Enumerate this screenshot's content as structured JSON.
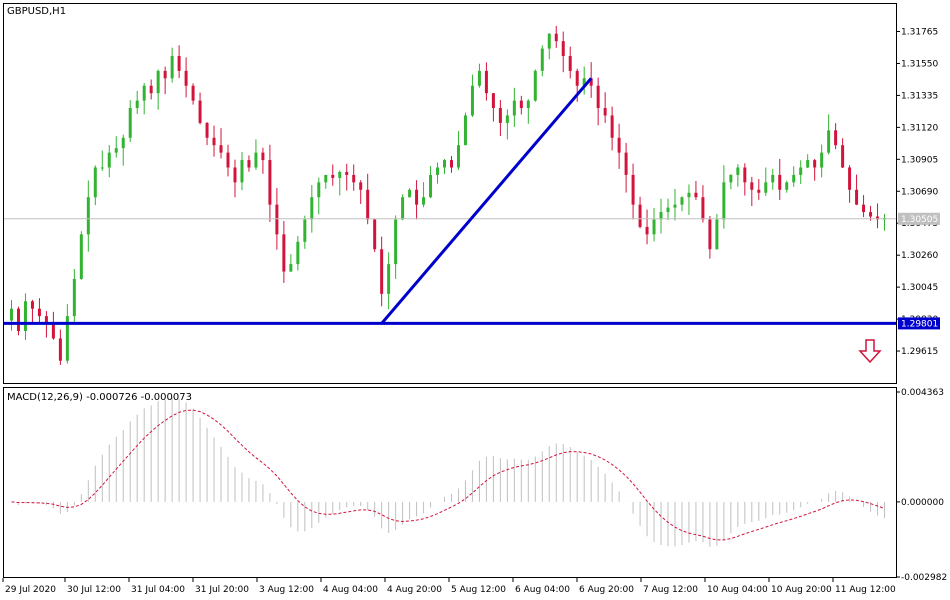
{
  "chart_data": [
    {
      "type": "candlestick",
      "title": "GBPUSD,H1",
      "ylim": [
        1.294,
        1.3195
      ],
      "y_ticks": [
        "1.31765",
        "1.31550",
        "1.31335",
        "1.31120",
        "1.30905",
        "1.30690",
        "1.30475",
        "1.30260",
        "1.30045",
        "1.29830",
        "1.29615"
      ],
      "x_labels": [
        "29 Jul 2020",
        "30 Jul 12:00",
        "31 Jul 04:00",
        "31 Jul 20:00",
        "3 Aug 12:00",
        "4 Aug 04:00",
        "4 Aug 20:00",
        "5 Aug 12:00",
        "6 Aug 04:00",
        "6 Aug 20:00",
        "7 Aug 12:00",
        "10 Aug 04:00",
        "10 Aug 20:00",
        "11 Aug 12:00"
      ],
      "current_price": {
        "label": "1.30505",
        "value": 1.30505,
        "color": "#c0c0c0"
      },
      "support_line": {
        "label": "1.29801",
        "value": 1.29801,
        "color": "#0000cd"
      },
      "trend_line": {
        "from": 1.29801,
        "to": 1.3145,
        "color": "#0000cd"
      },
      "signal": {
        "icon": "arrow-down-icon",
        "color": "#d2143c"
      },
      "bull_color": "#32b432",
      "bear_color": "#d2143c",
      "closes": [
        1.299,
        1.2975,
        1.2995,
        1.299,
        1.2985,
        1.298,
        1.297,
        1.2955,
        1.2985,
        1.301,
        1.304,
        1.3065,
        1.3085,
        1.3085,
        1.3095,
        1.3098,
        1.3105,
        1.3125,
        1.313,
        1.314,
        1.3135,
        1.315,
        1.3145,
        1.316,
        1.315,
        1.314,
        1.313,
        1.3115,
        1.3105,
        1.31,
        1.3095,
        1.3085,
        1.3075,
        1.309,
        1.3085,
        1.3095,
        1.309,
        1.306,
        1.304,
        1.3015,
        1.302,
        1.3035,
        1.305,
        1.3065,
        1.3075,
        1.308,
        1.3078,
        1.3082,
        1.308,
        1.3075,
        1.307,
        1.305,
        1.303,
        1.3,
        1.302,
        1.305,
        1.3065,
        1.307,
        1.306,
        1.3065,
        1.308,
        1.3085,
        1.309,
        1.3085,
        1.31,
        1.312,
        1.314,
        1.315,
        1.3135,
        1.3125,
        1.3115,
        1.312,
        1.313,
        1.3125,
        1.313,
        1.315,
        1.3165,
        1.3175,
        1.317,
        1.316,
        1.315,
        1.314,
        1.3145,
        1.314,
        1.3125,
        1.312,
        1.3105,
        1.3095,
        1.308,
        1.306,
        1.3045,
        1.304,
        1.305,
        1.3055,
        1.3058,
        1.306,
        1.3065,
        1.3068,
        1.3065,
        1.305,
        1.303,
        1.305,
        1.3075,
        1.308,
        1.3085,
        1.3075,
        1.307,
        1.3068,
        1.3075,
        1.308,
        1.307,
        1.3075,
        1.308,
        1.3085,
        1.309,
        1.3085,
        1.3095,
        1.311,
        1.31,
        1.3085,
        1.307,
        1.306,
        1.3055,
        1.3052,
        1.305,
        1.3051
      ]
    },
    {
      "type": "histogram+line",
      "title": "MACD(12,26,9) -0.000726 -0.000073",
      "ylim": [
        -0.002982,
        0.004363
      ],
      "y_ticks": [
        "0.004363",
        "0.000000",
        "-0.002982"
      ],
      "histogram_color": "#c0c0c0",
      "signal_color": "#d2143c"
    }
  ]
}
